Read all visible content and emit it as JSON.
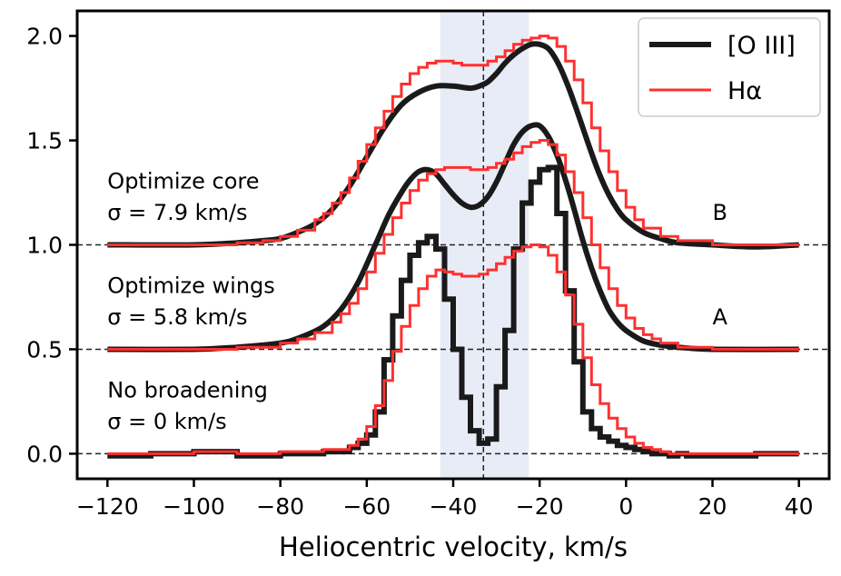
{
  "chart_data": {
    "type": "line",
    "xlabel": "Heliocentric velocity, km/s",
    "ylabel": "",
    "xlim": [
      -127,
      47
    ],
    "ylim": [
      -0.12,
      2.12
    ],
    "x_ticks": [
      -120,
      -100,
      -80,
      -60,
      -40,
      -20,
      0,
      20,
      40
    ],
    "x_tick_labels": [
      "−120",
      "−100",
      "−80",
      "−60",
      "−40",
      "−20",
      "0",
      "20",
      "40"
    ],
    "y_ticks": [
      0.0,
      0.5,
      1.0,
      1.5,
      2.0
    ],
    "y_tick_labels": [
      "0.0",
      "0.5",
      "1.0",
      "1.5",
      "2.0"
    ],
    "baselines": [
      0.0,
      0.5,
      1.0
    ],
    "vline_x": -33,
    "shaded_band": [
      -43,
      -22.5
    ],
    "legend": {
      "position": "top-right",
      "entries": [
        {
          "label": "[O III]",
          "color": "#1a1a1a",
          "style": "thick"
        },
        {
          "label": "Hα",
          "color": "#ff3030",
          "style": "thin"
        }
      ]
    },
    "annotations": [
      {
        "x": -120,
        "y": 1.27,
        "text": "Optimize core"
      },
      {
        "x": -120,
        "y": 1.12,
        "text": "σ = 7.9 km/s"
      },
      {
        "x": -120,
        "y": 0.77,
        "text": "Optimize wings"
      },
      {
        "x": -120,
        "y": 0.62,
        "text": "σ = 5.8 km/s"
      },
      {
        "x": -120,
        "y": 0.27,
        "text": "No broadening"
      },
      {
        "x": -120,
        "y": 0.12,
        "text": "σ = 0 km/s"
      },
      {
        "x": 20,
        "y": 1.12,
        "text": "B"
      },
      {
        "x": 20,
        "y": 0.62,
        "text": "A"
      }
    ],
    "series": [
      {
        "name": "[O III] no broadening",
        "legend": "[O III]",
        "offset": 0.0,
        "style": "step-thick",
        "color": "#1a1a1a",
        "x": [
          -120,
          -110,
          -100,
          -90,
          -80,
          -70,
          -64,
          -62,
          -60,
          -58,
          -56,
          -54,
          -52,
          -50,
          -48,
          -46,
          -44,
          -42,
          -40,
          -38,
          -36,
          -34,
          -32,
          -30,
          -28,
          -26,
          -24,
          -22,
          -20,
          -18,
          -16,
          -14,
          -12,
          -10,
          -8,
          -6,
          -4,
          -2,
          0,
          2,
          4,
          6,
          8,
          10,
          12,
          14,
          16,
          18,
          20,
          30,
          40
        ],
        "y": [
          -0.01,
          0.0,
          0.01,
          -0.01,
          0.0,
          0.01,
          0.03,
          0.05,
          0.09,
          0.2,
          0.45,
          0.66,
          0.83,
          0.95,
          1.01,
          1.04,
          0.98,
          0.74,
          0.5,
          0.27,
          0.11,
          0.05,
          0.07,
          0.32,
          0.59,
          0.98,
          1.2,
          1.3,
          1.36,
          1.37,
          1.15,
          0.78,
          0.44,
          0.2,
          0.12,
          0.08,
          0.06,
          0.04,
          0.03,
          0.02,
          0.01,
          0.0,
          0.0,
          -0.01,
          0.0,
          -0.01,
          -0.01,
          -0.01,
          -0.01,
          0.0,
          0.0
        ]
      },
      {
        "name": "Hα no broadening",
        "legend": "Hα",
        "offset": 0.0,
        "style": "step-thin",
        "color": "#ff3030",
        "x": [
          -120,
          -110,
          -100,
          -90,
          -80,
          -70,
          -64,
          -62,
          -60,
          -58,
          -56,
          -54,
          -52,
          -50,
          -48,
          -46,
          -44,
          -42,
          -40,
          -38,
          -36,
          -34,
          -32,
          -30,
          -28,
          -26,
          -24,
          -22,
          -20,
          -18,
          -16,
          -14,
          -12,
          -10,
          -8,
          -6,
          -4,
          -2,
          0,
          2,
          4,
          6,
          8,
          10,
          12,
          14,
          16,
          18,
          20,
          30,
          40
        ],
        "y": [
          0.0,
          0.0,
          0.01,
          0.0,
          0.01,
          0.02,
          0.04,
          0.07,
          0.13,
          0.23,
          0.35,
          0.49,
          0.61,
          0.71,
          0.79,
          0.85,
          0.88,
          0.87,
          0.86,
          0.85,
          0.85,
          0.86,
          0.88,
          0.91,
          0.94,
          0.97,
          0.99,
          1.0,
          0.99,
          0.95,
          0.87,
          0.76,
          0.62,
          0.46,
          0.33,
          0.24,
          0.17,
          0.12,
          0.08,
          0.05,
          0.03,
          0.02,
          0.01,
          0.0,
          0.0,
          0.0,
          0.0,
          0.0,
          0.0,
          0.0,
          0.0
        ]
      },
      {
        "name": "[O III] optimize wings (A)",
        "offset": 0.5,
        "style": "smooth-thick",
        "color": "#1a1a1a",
        "x": [
          -120,
          -100,
          -90,
          -80,
          -75,
          -70,
          -66,
          -62,
          -58,
          -55,
          -52,
          -50,
          -48,
          -46,
          -44,
          -42,
          -40,
          -38,
          -36,
          -34,
          -32,
          -30,
          -28,
          -26,
          -24,
          -22,
          -20,
          -18,
          -16,
          -14,
          -12,
          -10,
          -8,
          -6,
          -4,
          -2,
          0,
          4,
          8,
          12,
          20,
          40
        ],
        "y": [
          0.0,
          0.0,
          0.01,
          0.03,
          0.06,
          0.11,
          0.19,
          0.32,
          0.5,
          0.64,
          0.75,
          0.81,
          0.85,
          0.86,
          0.84,
          0.79,
          0.74,
          0.7,
          0.68,
          0.69,
          0.73,
          0.8,
          0.89,
          0.98,
          1.04,
          1.07,
          1.07,
          1.02,
          0.93,
          0.81,
          0.67,
          0.52,
          0.39,
          0.28,
          0.19,
          0.13,
          0.09,
          0.04,
          0.02,
          0.01,
          0.0,
          0.0
        ]
      },
      {
        "name": "Hα optimize wings (A)",
        "offset": 0.5,
        "style": "step-thin",
        "color": "#ff3030",
        "x": [
          -120,
          -100,
          -90,
          -80,
          -76,
          -72,
          -68,
          -66,
          -64,
          -62,
          -60,
          -58,
          -56,
          -54,
          -52,
          -50,
          -48,
          -46,
          -44,
          -42,
          -40,
          -38,
          -36,
          -34,
          -32,
          -30,
          -28,
          -26,
          -24,
          -22,
          -20,
          -18,
          -16,
          -14,
          -12,
          -10,
          -8,
          -6,
          -4,
          -2,
          0,
          2,
          4,
          6,
          8,
          12,
          20,
          40
        ],
        "y": [
          0.0,
          0.0,
          0.01,
          0.03,
          0.05,
          0.08,
          0.13,
          0.17,
          0.22,
          0.29,
          0.37,
          0.46,
          0.55,
          0.63,
          0.7,
          0.76,
          0.81,
          0.84,
          0.86,
          0.87,
          0.87,
          0.87,
          0.86,
          0.86,
          0.87,
          0.89,
          0.91,
          0.94,
          0.97,
          0.99,
          1.0,
          0.98,
          0.93,
          0.85,
          0.75,
          0.63,
          0.5,
          0.39,
          0.29,
          0.21,
          0.15,
          0.1,
          0.07,
          0.05,
          0.03,
          0.01,
          0.0,
          0.0
        ]
      },
      {
        "name": "[O III] optimize core (B)",
        "offset": 1.0,
        "style": "smooth-thick",
        "color": "#1a1a1a",
        "x": [
          -120,
          -100,
          -90,
          -84,
          -80,
          -76,
          -72,
          -68,
          -64,
          -60,
          -56,
          -52,
          -48,
          -44,
          -40,
          -36,
          -34,
          -32,
          -30,
          -28,
          -26,
          -24,
          -22,
          -20,
          -18,
          -16,
          -14,
          -12,
          -10,
          -8,
          -6,
          -4,
          -2,
          0,
          4,
          8,
          12,
          20,
          30,
          40
        ],
        "y": [
          0.0,
          0.0,
          0.01,
          0.02,
          0.03,
          0.06,
          0.1,
          0.17,
          0.28,
          0.42,
          0.56,
          0.67,
          0.73,
          0.76,
          0.76,
          0.75,
          0.76,
          0.78,
          0.82,
          0.87,
          0.91,
          0.94,
          0.96,
          0.96,
          0.94,
          0.88,
          0.79,
          0.68,
          0.56,
          0.44,
          0.33,
          0.24,
          0.17,
          0.12,
          0.06,
          0.03,
          0.01,
          0.0,
          -0.01,
          0.0
        ]
      },
      {
        "name": "Hα optimize core (B)",
        "offset": 1.0,
        "style": "step-thin",
        "color": "#ff3030",
        "x": [
          -120,
          -100,
          -90,
          -84,
          -80,
          -76,
          -72,
          -70,
          -68,
          -66,
          -64,
          -62,
          -60,
          -58,
          -56,
          -54,
          -52,
          -50,
          -48,
          -46,
          -44,
          -42,
          -40,
          -38,
          -36,
          -34,
          -32,
          -30,
          -28,
          -26,
          -24,
          -22,
          -20,
          -18,
          -16,
          -14,
          -12,
          -10,
          -8,
          -6,
          -4,
          -2,
          0,
          2,
          4,
          8,
          12,
          20,
          40
        ],
        "y": [
          0.0,
          0.0,
          0.01,
          0.02,
          0.04,
          0.07,
          0.12,
          0.15,
          0.2,
          0.25,
          0.32,
          0.4,
          0.48,
          0.56,
          0.64,
          0.71,
          0.77,
          0.82,
          0.85,
          0.87,
          0.88,
          0.88,
          0.87,
          0.86,
          0.86,
          0.86,
          0.88,
          0.9,
          0.93,
          0.96,
          0.98,
          0.99,
          1.0,
          0.99,
          0.95,
          0.88,
          0.79,
          0.68,
          0.56,
          0.45,
          0.35,
          0.26,
          0.18,
          0.12,
          0.08,
          0.04,
          0.02,
          0.0,
          0.0
        ]
      }
    ]
  }
}
